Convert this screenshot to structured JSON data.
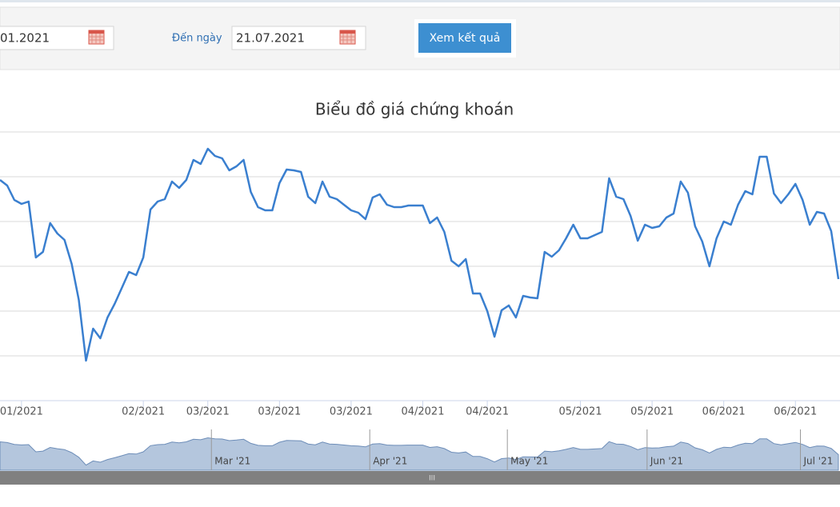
{
  "form": {
    "from_value": "01.2021",
    "to_label": "Đến ngày",
    "to_value": "21.07.2021",
    "submit": "Xem kết quả",
    "scroll_grip": "III"
  },
  "chart_data": {
    "type": "line",
    "title": "Biểu đồ giá chứng khoán",
    "color": "#3a7fcf",
    "grid": true,
    "ylim": [
      0,
      336
    ],
    "yticks": [
      0,
      56,
      112,
      168,
      224,
      280,
      336
    ],
    "categories": [
      null,
      null,
      null,
      "01/2021",
      null,
      null,
      null,
      null,
      null,
      null,
      null,
      null,
      null,
      null,
      null,
      null,
      null,
      null,
      null,
      null,
      "02/2021",
      null,
      null,
      null,
      null,
      null,
      null,
      null,
      null,
      "03/2021",
      null,
      null,
      null,
      null,
      null,
      null,
      null,
      null,
      null,
      "03/2021",
      null,
      null,
      null,
      null,
      null,
      null,
      null,
      null,
      null,
      "03/2021",
      null,
      null,
      null,
      null,
      null,
      null,
      null,
      null,
      null,
      "04/2021",
      null,
      null,
      null,
      null,
      null,
      null,
      null,
      null,
      "04/2021",
      null,
      null,
      null,
      null,
      null,
      null,
      null,
      null,
      null,
      null,
      null,
      null,
      "05/2021",
      null,
      null,
      null,
      null,
      null,
      null,
      null,
      null,
      null,
      "05/2021",
      null,
      null,
      null,
      null,
      null,
      null,
      null,
      null,
      null,
      "06/2021",
      null,
      null,
      null,
      null,
      null,
      null,
      null,
      null,
      null,
      "06/2021",
      null,
      null,
      null,
      null,
      null,
      null
    ],
    "values": [
      276,
      269,
      251,
      246,
      249,
      179,
      186,
      222,
      209,
      201,
      171,
      126,
      50,
      90,
      78,
      104,
      121,
      141,
      161,
      157,
      179,
      239,
      249,
      252,
      274,
      266,
      276,
      301,
      296,
      315,
      306,
      303,
      288,
      293,
      301,
      261,
      242,
      238,
      238,
      272,
      289,
      288,
      286,
      255,
      247,
      274,
      255,
      252,
      245,
      238,
      235,
      227,
      254,
      258,
      245,
      242,
      242,
      244,
      244,
      244,
      222,
      229,
      211,
      175,
      168,
      177,
      134,
      134,
      112,
      80,
      113,
      119,
      104,
      131,
      129,
      128,
      186,
      180,
      188,
      203,
      220,
      203,
      203,
      207,
      211,
      278,
      255,
      252,
      231,
      200,
      220,
      216,
      218,
      229,
      234,
      274,
      260,
      218,
      199,
      168,
      203,
      224,
      220,
      245,
      262,
      258,
      305,
      305,
      259,
      247,
      258,
      271,
      251,
      220,
      236,
      234,
      212,
      152
    ],
    "navigator_ticks": [
      {
        "value": 29.5,
        "label": "Mar '21"
      },
      {
        "value": 51.6,
        "label": "Apr '21"
      },
      {
        "value": 70.8,
        "label": "May '21"
      },
      {
        "value": 90.3,
        "label": "Jun '21"
      },
      {
        "value": 111.7,
        "label": "Jul '21"
      }
    ]
  }
}
